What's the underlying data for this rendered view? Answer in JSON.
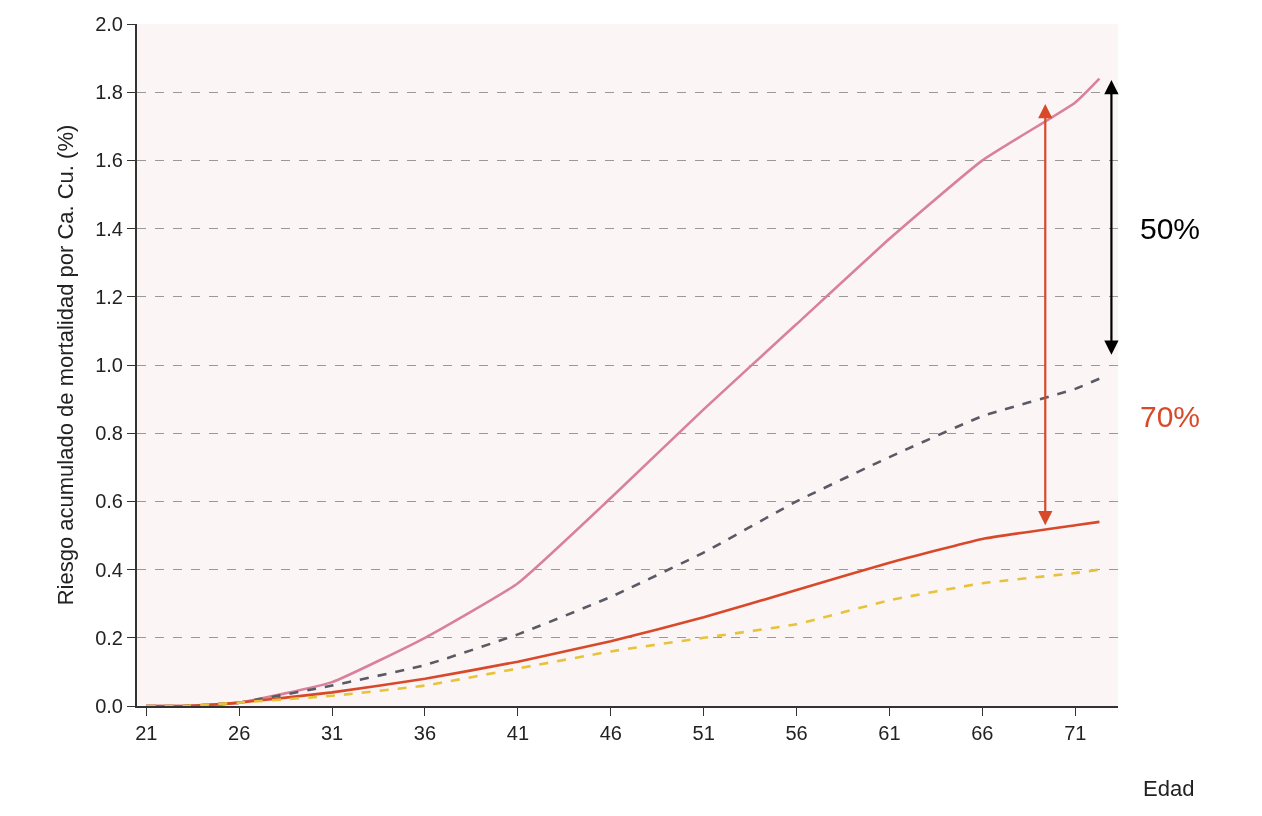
{
  "chart_data": {
    "type": "line",
    "ylabel": "Riesgo acumulado de mortalidad por Ca. Cu. (%)",
    "xlabel": "Edad",
    "x": [
      21,
      23,
      26,
      31,
      36,
      41,
      46,
      51,
      56,
      61,
      66,
      71,
      72.3
    ],
    "series": [
      {
        "color": "#d9809a",
        "line_style": "solid",
        "values": [
          0,
          0,
          0.01,
          0.07,
          0.2,
          0.36,
          0.61,
          0.87,
          1.12,
          1.37,
          1.6,
          1.77,
          1.84
        ]
      },
      {
        "color": "#5a5a64",
        "line_style": "dashed",
        "values": [
          0,
          0,
          0.01,
          0.06,
          0.12,
          0.21,
          0.32,
          0.45,
          0.6,
          0.73,
          0.85,
          0.93,
          0.96
        ]
      },
      {
        "color": "#d8492a",
        "line_style": "solid",
        "values": [
          0,
          0,
          0.01,
          0.04,
          0.08,
          0.13,
          0.19,
          0.26,
          0.34,
          0.42,
          0.49,
          0.53,
          0.54
        ]
      },
      {
        "color": "#e8c33a",
        "line_style": "dashed",
        "values": [
          0,
          0,
          0.01,
          0.03,
          0.06,
          0.11,
          0.16,
          0.2,
          0.24,
          0.31,
          0.36,
          0.39,
          0.4
        ]
      }
    ],
    "annotations": [
      "50%",
      "70%"
    ],
    "xlim": [
      20.5,
      73.3
    ],
    "ylim": [
      0,
      2.0
    ],
    "xticks": [
      21,
      26,
      31,
      36,
      41,
      46,
      51,
      56,
      61,
      66,
      71
    ],
    "yticks": [
      {
        "value": 0,
        "label": "0.0"
      },
      {
        "value": 0.2,
        "label": "0.2"
      },
      {
        "value": 0.4,
        "label": "0.4"
      },
      {
        "value": 0.6,
        "label": "0.6"
      },
      {
        "value": 0.8,
        "label": "0.8"
      },
      {
        "value": 1.0,
        "label": "1.0"
      },
      {
        "value": 1.2,
        "label": "1.2"
      },
      {
        "value": 1.4,
        "label": "1.4"
      },
      {
        "value": 1.6,
        "label": "1.6"
      },
      {
        "value": 1.8,
        "label": "1.8"
      },
      {
        "value": 2.0,
        "label": "2.0"
      }
    ],
    "grid": "y",
    "marker": "none"
  }
}
